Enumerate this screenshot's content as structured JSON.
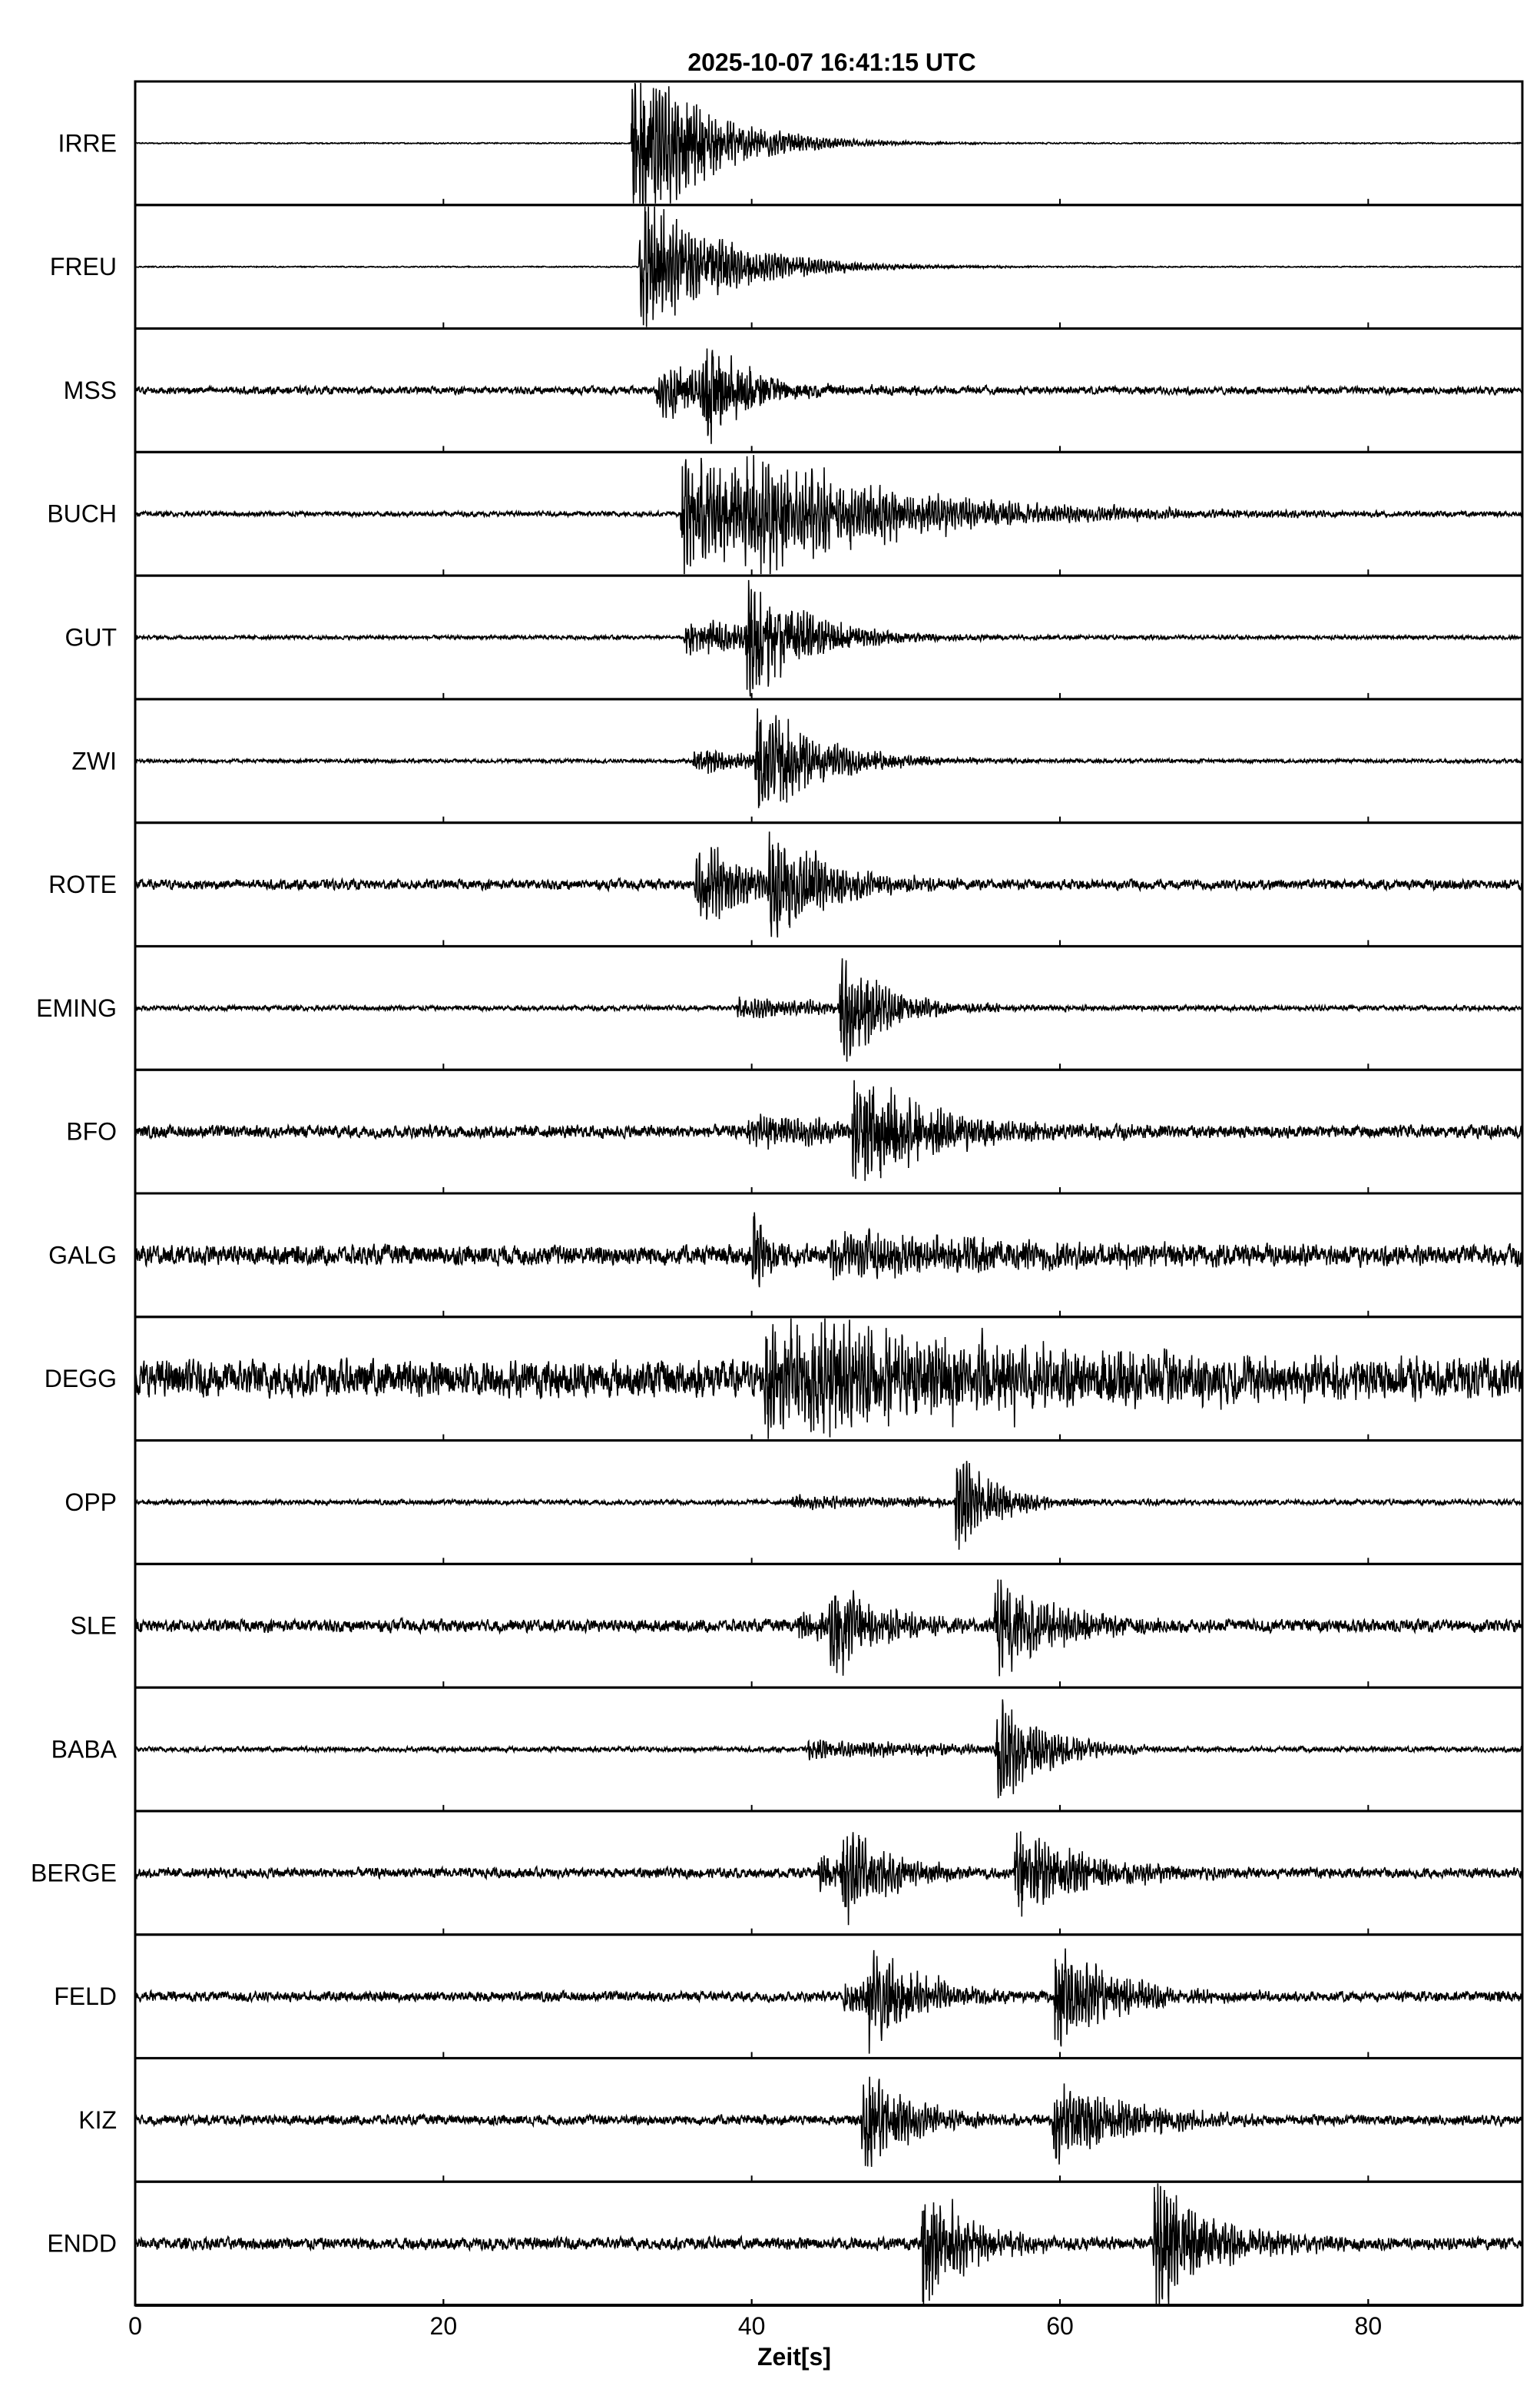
{
  "chart_data": {
    "type": "line",
    "title": "2025-10-07  16:41:15 UTC",
    "xlabel": "Zeit[s]",
    "ylabel": "",
    "xlim": [
      0,
      90
    ],
    "xticks": [
      0,
      20,
      40,
      60,
      80
    ],
    "xtick_labels": [
      "0",
      "20",
      "40",
      "60",
      "80"
    ],
    "grid": false,
    "trace_color": "#000000",
    "series": [
      {
        "name": "IRRE",
        "noise": 0.005,
        "events": [
          {
            "t": 32.2,
            "amp": 0.75,
            "decay": 4.5
          }
        ]
      },
      {
        "name": "FREU",
        "noise": 0.005,
        "events": [
          {
            "t": 32.7,
            "amp": 0.6,
            "decay": 5
          }
        ]
      },
      {
        "name": "MSS",
        "noise": 0.03,
        "events": [
          {
            "t": 33.8,
            "amp": 0.25,
            "decay": 6
          },
          {
            "t": 36.8,
            "amp": 0.55,
            "decay": 2.5
          }
        ]
      },
      {
        "name": "BUCH",
        "noise": 0.02,
        "events": [
          {
            "t": 35.4,
            "amp": 0.45,
            "decay": 12
          },
          {
            "t": 39.5,
            "amp": 0.3,
            "decay": 8
          }
        ]
      },
      {
        "name": "GUT",
        "noise": 0.015,
        "events": [
          {
            "t": 35.6,
            "amp": 0.15,
            "decay": 8
          },
          {
            "t": 39.6,
            "amp": 0.5,
            "decay": 4
          }
        ]
      },
      {
        "name": "ZWI",
        "noise": 0.015,
        "events": [
          {
            "t": 36.2,
            "amp": 0.1,
            "decay": 8
          },
          {
            "t": 40.2,
            "amp": 0.5,
            "decay": 4
          }
        ]
      },
      {
        "name": "ROTE",
        "noise": 0.04,
        "events": [
          {
            "t": 36.3,
            "amp": 0.35,
            "decay": 4
          },
          {
            "t": 41.0,
            "amp": 0.45,
            "decay": 4
          }
        ]
      },
      {
        "name": "EMING",
        "noise": 0.02,
        "events": [
          {
            "t": 39.0,
            "amp": 0.08,
            "decay": 10
          },
          {
            "t": 45.7,
            "amp": 0.5,
            "decay": 3
          }
        ]
      },
      {
        "name": "BFO",
        "noise": 0.05,
        "events": [
          {
            "t": 39.6,
            "amp": 0.12,
            "decay": 10
          },
          {
            "t": 46.5,
            "amp": 0.45,
            "decay": 6
          }
        ]
      },
      {
        "name": "GALG",
        "noise": 0.08,
        "events": [
          {
            "t": 40.0,
            "amp": 0.45,
            "decay": 1
          },
          {
            "t": 45.0,
            "amp": 0.18,
            "decay": 15
          }
        ]
      },
      {
        "name": "DEGG",
        "noise": 0.15,
        "events": [
          {
            "t": 40.8,
            "amp": 0.45,
            "decay": 20
          }
        ]
      },
      {
        "name": "OPP",
        "noise": 0.02,
        "events": [
          {
            "t": 42.6,
            "amp": 0.06,
            "decay": 12
          },
          {
            "t": 53.2,
            "amp": 0.45,
            "decay": 2.5
          }
        ]
      },
      {
        "name": "SLE",
        "noise": 0.05,
        "events": [
          {
            "t": 42.9,
            "amp": 0.12,
            "decay": 6
          },
          {
            "t": 45.0,
            "amp": 0.4,
            "decay": 3
          },
          {
            "t": 55.7,
            "amp": 0.4,
            "decay": 4
          }
        ]
      },
      {
        "name": "BABA",
        "noise": 0.02,
        "events": [
          {
            "t": 43.6,
            "amp": 0.08,
            "decay": 10
          },
          {
            "t": 55.8,
            "amp": 0.45,
            "decay": 3
          }
        ]
      },
      {
        "name": "BERGE",
        "noise": 0.04,
        "events": [
          {
            "t": 44.3,
            "amp": 0.15,
            "decay": 5
          },
          {
            "t": 45.8,
            "amp": 0.4,
            "decay": 3
          },
          {
            "t": 57.0,
            "amp": 0.35,
            "decay": 5
          }
        ]
      },
      {
        "name": "FELD",
        "noise": 0.04,
        "events": [
          {
            "t": 45.9,
            "amp": 0.15,
            "decay": 6
          },
          {
            "t": 47.4,
            "amp": 0.45,
            "decay": 3
          },
          {
            "t": 59.6,
            "amp": 0.45,
            "decay": 4
          }
        ]
      },
      {
        "name": "KIZ",
        "noise": 0.04,
        "events": [
          {
            "t": 47.1,
            "amp": 0.45,
            "decay": 3
          },
          {
            "t": 59.5,
            "amp": 0.35,
            "decay": 5
          }
        ]
      },
      {
        "name": "ENDD",
        "noise": 0.05,
        "events": [
          {
            "t": 51.0,
            "amp": 0.55,
            "decay": 3
          },
          {
            "t": 66.0,
            "amp": 0.55,
            "decay": 4
          }
        ]
      }
    ]
  }
}
